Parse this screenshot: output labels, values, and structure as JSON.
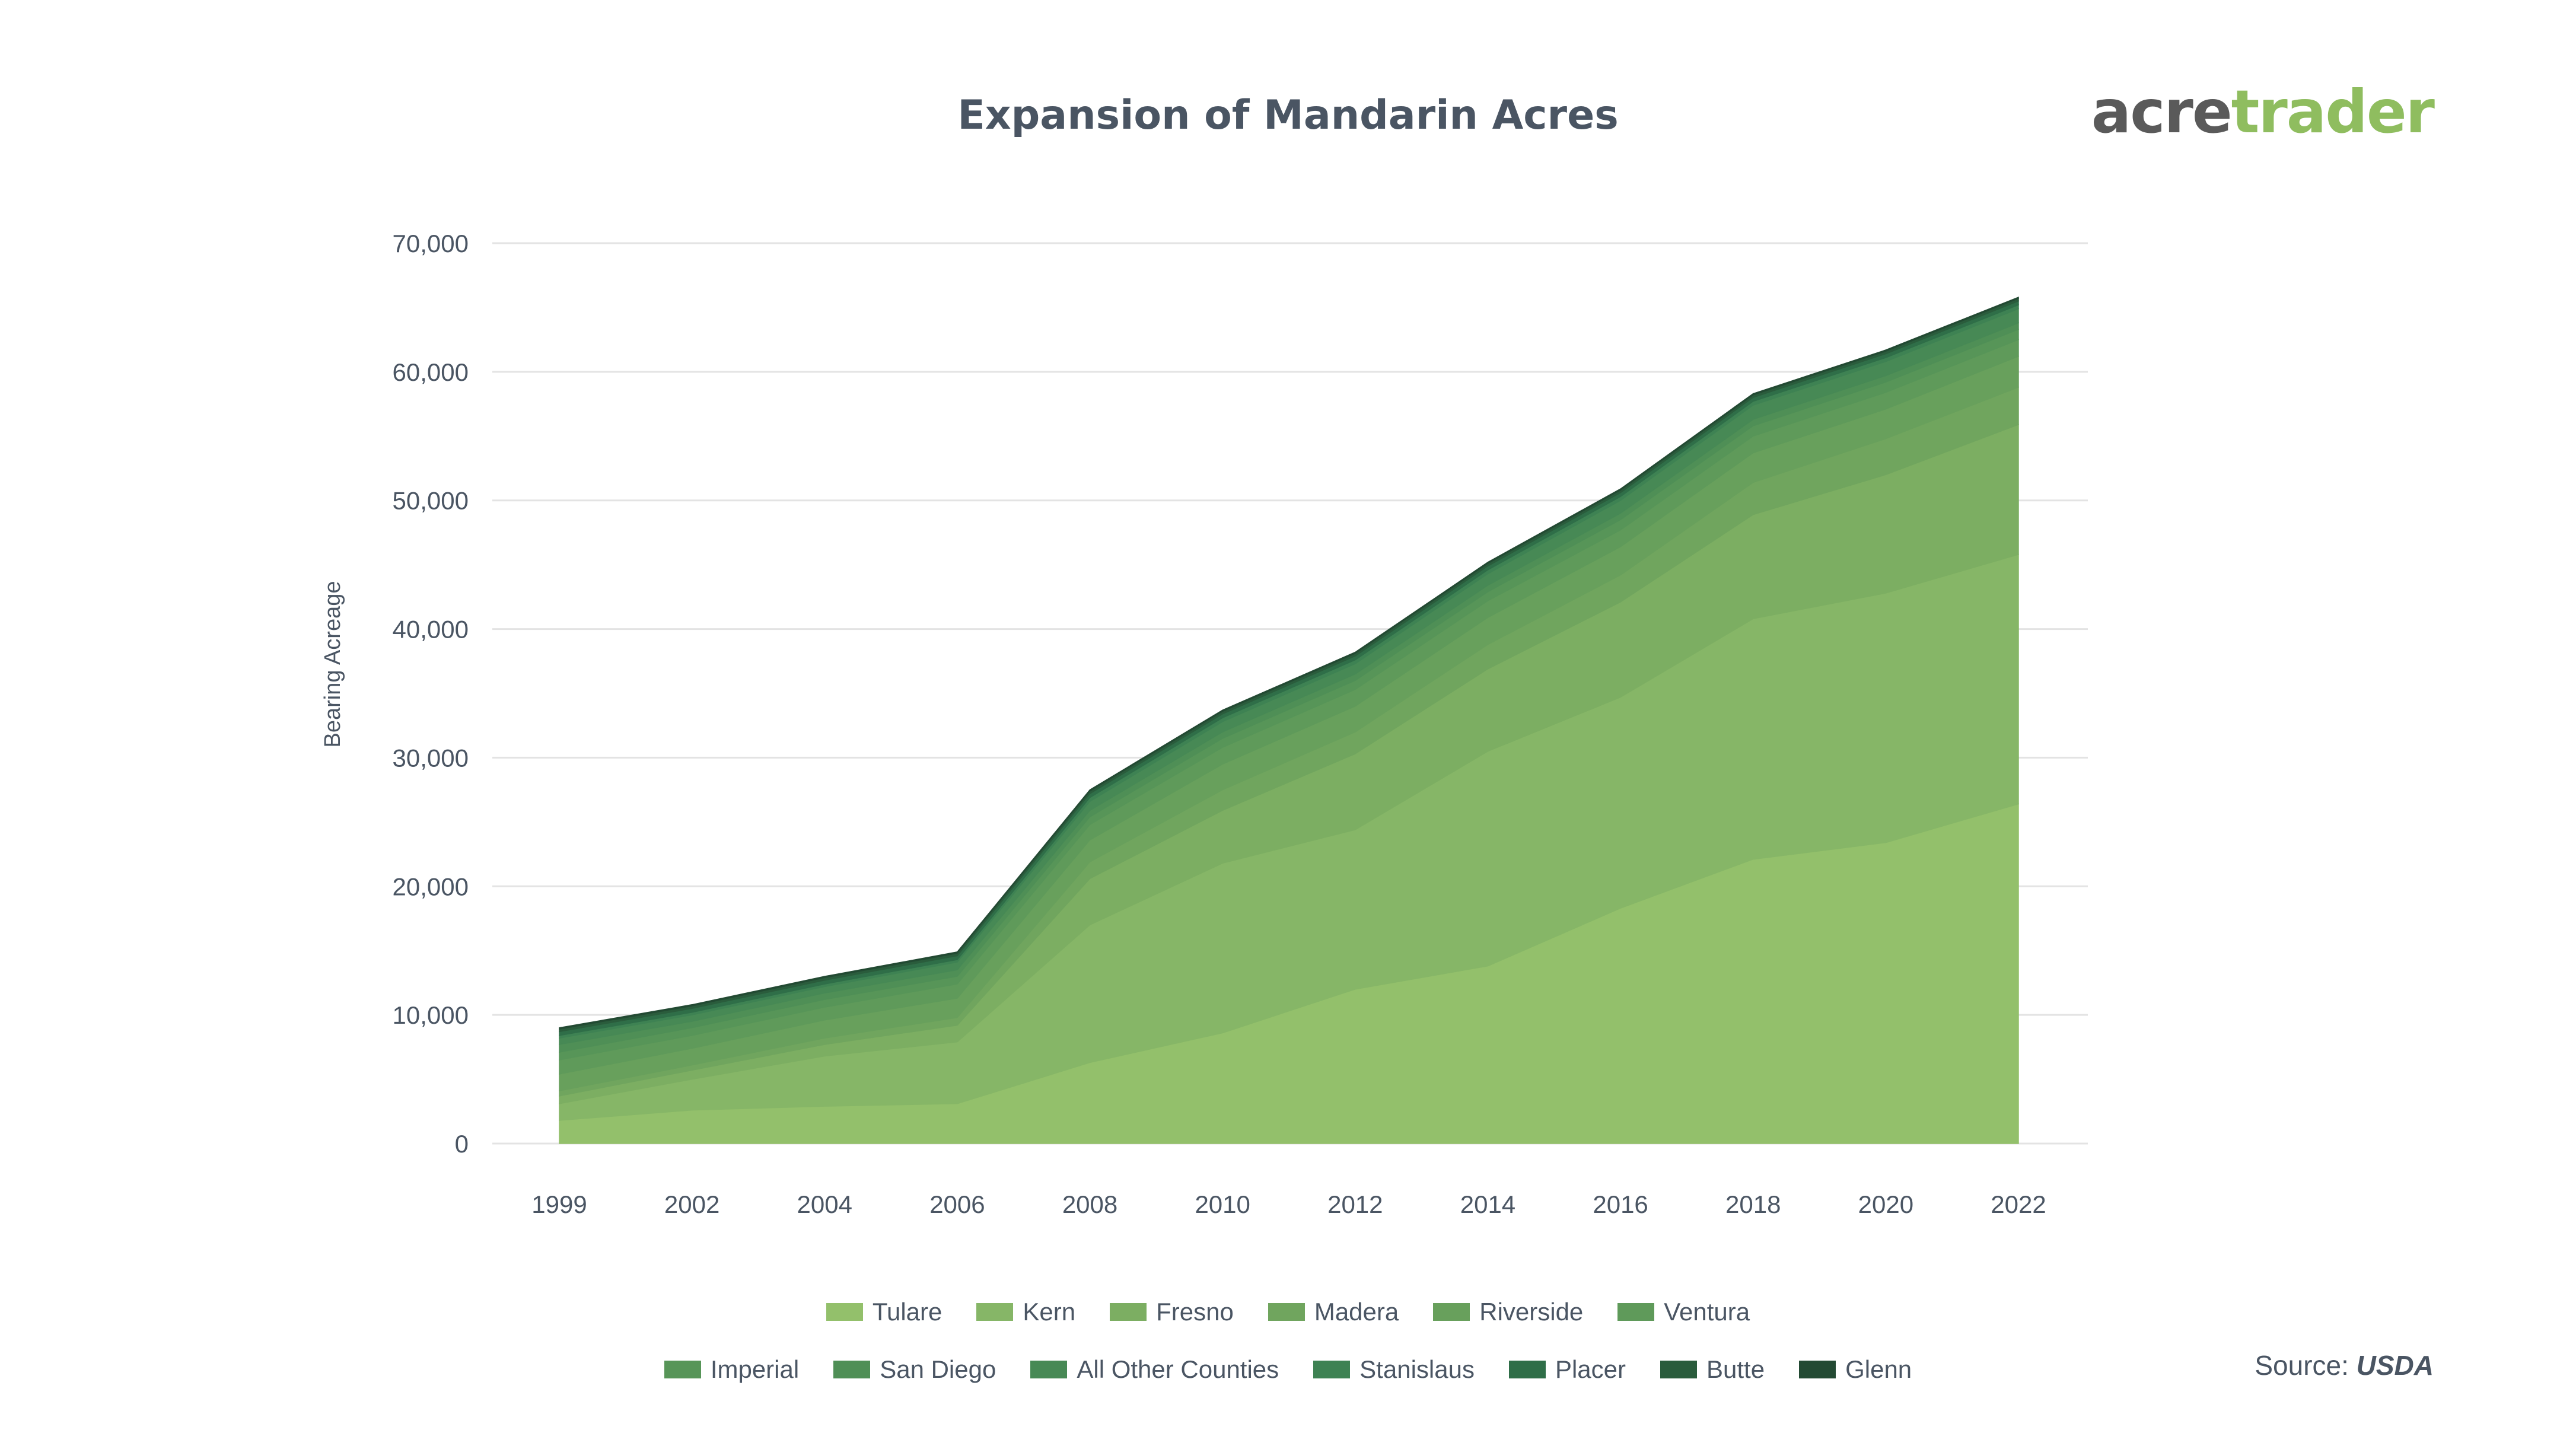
{
  "header": {
    "title": "Expansion of Mandarin Acres",
    "logo_part1": "acre",
    "logo_part2": "trader"
  },
  "footer": {
    "source_label": "Source:",
    "source_value": "USDA"
  },
  "colors": {
    "title": "#4a5563",
    "axis_text": "#4a5563",
    "grid": "#e3e3e3",
    "logo_dark": "#5a5a5a",
    "logo_green": "#8fbd5f"
  },
  "chart_data": {
    "type": "area",
    "stacked": true,
    "title": "Expansion of Mandarin Acres",
    "xlabel": "",
    "ylabel": "Bearing Acreage",
    "ylim": [
      0,
      70000
    ],
    "yticks": [
      0,
      10000,
      20000,
      30000,
      40000,
      50000,
      60000,
      70000
    ],
    "ytick_labels": [
      "0",
      "10,000",
      "20,000",
      "30,000",
      "40,000",
      "50,000",
      "60,000",
      "70,000"
    ],
    "categories": [
      "1999",
      "2002",
      "2004",
      "2006",
      "2008",
      "2010",
      "2012",
      "2014",
      "2016",
      "2018",
      "2020",
      "2022"
    ],
    "grid": true,
    "legend_position": "bottom",
    "series": [
      {
        "name": "Tulare",
        "color": "#93c06b",
        "values": [
          1800,
          2600,
          2900,
          3100,
          6300,
          8600,
          12000,
          13800,
          18300,
          22100,
          23400,
          26400
        ]
      },
      {
        "name": "Kern",
        "color": "#86b667",
        "values": [
          1300,
          2400,
          3900,
          4800,
          10700,
          13200,
          12400,
          16700,
          16400,
          18700,
          19400,
          19400
        ]
      },
      {
        "name": "Fresno",
        "color": "#7cae62",
        "values": [
          600,
          700,
          900,
          1300,
          3600,
          4100,
          5900,
          6400,
          7400,
          8100,
          9200,
          10100
        ]
      },
      {
        "name": "Madera",
        "color": "#70a55e",
        "values": [
          400,
          400,
          500,
          600,
          1300,
          1600,
          1700,
          1900,
          2100,
          2500,
          2800,
          2900
        ]
      },
      {
        "name": "Riverside",
        "color": "#68a05c",
        "values": [
          1300,
          1300,
          1400,
          1500,
          1700,
          2000,
          2000,
          2100,
          2200,
          2300,
          2300,
          2400
        ]
      },
      {
        "name": "Ventura",
        "color": "#5f9a5a",
        "values": [
          1100,
          1000,
          1000,
          1100,
          1200,
          1300,
          1300,
          1300,
          1300,
          1300,
          1300,
          1300
        ]
      },
      {
        "name": "Imperial",
        "color": "#579558",
        "values": [
          600,
          600,
          600,
          600,
          600,
          700,
          700,
          700,
          800,
          800,
          800,
          800
        ]
      },
      {
        "name": "San Diego",
        "color": "#4f8f56",
        "values": [
          600,
          500,
          500,
          500,
          500,
          500,
          500,
          500,
          500,
          500,
          500,
          500
        ]
      },
      {
        "name": "All Other Counties",
        "color": "#478955",
        "values": [
          500,
          500,
          500,
          600,
          700,
          800,
          800,
          900,
          1000,
          1100,
          1100,
          1100
        ]
      },
      {
        "name": "Stanislaus",
        "color": "#3e8253",
        "values": [
          200,
          200,
          200,
          200,
          300,
          300,
          300,
          300,
          300,
          300,
          300,
          300
        ]
      },
      {
        "name": "Placer",
        "color": "#2f6e48",
        "values": [
          300,
          300,
          300,
          300,
          300,
          300,
          300,
          300,
          300,
          300,
          300,
          300
        ]
      },
      {
        "name": "Butte",
        "color": "#2a5c3c",
        "values": [
          200,
          200,
          200,
          200,
          200,
          200,
          200,
          200,
          200,
          200,
          200,
          200
        ]
      },
      {
        "name": "Glenn",
        "color": "#234a33",
        "values": [
          100,
          100,
          100,
          100,
          100,
          100,
          100,
          100,
          100,
          100,
          100,
          100
        ]
      }
    ]
  }
}
